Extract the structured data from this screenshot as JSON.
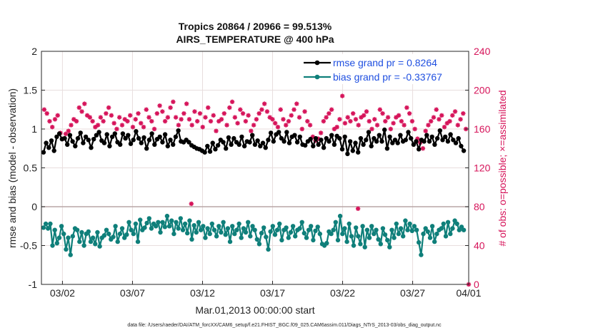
{
  "chart_data": {
    "type": "line",
    "title": "Tropics 20864 / 20966 = 99.513%",
    "subtitle": "AIRS_TEMPERATURE @ 400 hPa",
    "xlabel": "Mar.01,2013 00:00:00 start",
    "ylabel": "rmse and bias (model - observation)",
    "ylabel_right": "# of obs: o=possible; ×=assimilated",
    "footer": "data file: /Users/raeder/DAI/ATM_forcXX/CAM6_setup/f.e21.FHIST_BGC.f09_025.CAM6assim.011/Diags_NTrS_2013-03/obs_diag_output.nc",
    "ylim": [
      -1,
      2
    ],
    "ylim_right": [
      0,
      240
    ],
    "xlim_days": [
      -0.5,
      30
    ],
    "yticks": [
      "2",
      "1.5",
      "1",
      "0.5",
      "0",
      "-0.5",
      "-1"
    ],
    "yticks_right": [
      "240",
      "200",
      "160",
      "120",
      "80",
      "40",
      "0"
    ],
    "xticks": [
      "03/02",
      "03/07",
      "03/12",
      "03/17",
      "03/22",
      "03/27",
      "04/01"
    ],
    "legend": {
      "position": "top-right"
    },
    "colors": {
      "rmse": "#000000",
      "bias": "#0f7f7a",
      "obs": "#d6145a",
      "zero": "#b8a6a6",
      "grid": "#e8dede"
    },
    "series": [
      {
        "name": "rmse grand pr = 0.8264",
        "values": [
          0.7,
          0.82,
          0.76,
          0.85,
          0.72,
          0.9,
          0.94,
          0.87,
          0.88,
          0.8,
          0.92,
          0.84,
          0.78,
          0.88,
          0.95,
          0.82,
          0.9,
          0.86,
          0.76,
          0.87,
          0.92,
          0.96,
          0.85,
          0.82,
          0.93,
          0.78,
          0.9,
          0.94,
          0.83,
          0.8,
          0.94,
          0.88,
          0.92,
          0.81,
          0.86,
          0.97,
          0.88,
          0.82,
          0.89,
          0.75,
          0.86,
          0.94,
          0.8,
          0.87,
          0.9,
          0.83,
          0.93,
          0.78,
          0.86,
          0.8,
          0.9,
          0.98,
          0.84,
          0.83,
          0.86,
          0.83,
          0.79,
          0.77,
          0.75,
          0.74,
          0.72,
          0.7,
          0.78,
          0.71,
          0.82,
          0.74,
          0.79,
          0.86,
          0.83,
          0.75,
          0.89,
          0.8,
          0.88,
          0.83,
          0.8,
          0.9,
          0.78,
          0.84,
          0.83,
          0.92,
          0.8,
          0.85,
          0.78,
          0.82,
          0.76,
          0.86,
          0.95,
          0.84,
          0.93,
          0.96,
          0.88,
          0.84,
          0.96,
          0.82,
          0.9,
          0.92,
          0.83,
          0.9,
          0.8,
          0.79,
          0.84,
          0.87,
          0.78,
          0.88,
          0.8,
          0.86,
          0.76,
          0.88,
          0.84,
          0.92,
          0.8,
          0.91,
          0.88,
          0.74,
          0.9,
          0.68,
          0.84,
          0.72,
          0.82,
          0.7,
          0.88,
          0.8,
          0.86,
          0.96,
          0.78,
          0.88,
          0.84,
          0.92,
          0.84,
          0.99,
          0.75,
          0.9,
          0.82,
          0.86,
          0.82,
          0.92,
          0.84,
          0.86,
          0.96,
          0.88,
          0.8,
          0.84,
          0.74,
          0.86,
          0.84,
          0.92,
          0.84,
          0.9,
          0.8,
          0.88,
          0.98,
          0.86,
          0.9,
          0.84,
          0.93,
          0.86,
          0.82,
          0.88,
          0.78,
          0.72
        ]
      },
      {
        "name": "bias grand pr = -0.33767",
        "values": [
          -0.27,
          -0.22,
          -0.28,
          -0.22,
          -0.5,
          -0.3,
          -0.47,
          -0.4,
          -0.25,
          -0.35,
          -0.55,
          -0.4,
          -0.62,
          -0.38,
          -0.28,
          -0.3,
          -0.45,
          -0.33,
          -0.5,
          -0.35,
          -0.32,
          -0.45,
          -0.4,
          -0.48,
          -0.33,
          -0.51,
          -0.4,
          -0.37,
          -0.3,
          -0.35,
          -0.42,
          -0.39,
          -0.25,
          -0.45,
          -0.35,
          -0.28,
          -0.4,
          -0.36,
          -0.2,
          -0.3,
          -0.35,
          -0.22,
          -0.45,
          -0.17,
          -0.3,
          -0.27,
          -0.21,
          -0.15,
          -0.28,
          -0.22,
          -0.25,
          -0.2,
          -0.33,
          -0.2,
          -0.26,
          -0.12,
          -0.25,
          -0.18,
          -0.35,
          -0.2,
          -0.28,
          -0.15,
          -0.3,
          -0.22,
          -0.34,
          -0.18,
          -0.42,
          -0.24,
          -0.33,
          -0.2,
          -0.3,
          -0.25,
          -0.4,
          -0.28,
          -0.35,
          -0.22,
          -0.3,
          -0.38,
          -0.25,
          -0.33,
          -0.2,
          -0.36,
          -0.28,
          -0.45,
          -0.25,
          -0.35,
          -0.3,
          -0.22,
          -0.4,
          -0.28,
          -0.33,
          -0.2,
          -0.38,
          -0.25,
          -0.3,
          -0.42,
          -0.48,
          -0.34,
          -0.27,
          -0.39,
          -0.55,
          -0.32,
          -0.25,
          -0.36,
          -0.3,
          -0.22,
          -0.43,
          -0.3,
          -0.27,
          -0.4,
          -0.33,
          -0.25,
          -0.38,
          -0.3,
          -0.28,
          -0.2,
          -0.34,
          -0.4,
          -0.3,
          -0.25,
          -0.43,
          -0.31,
          -0.26,
          -0.35,
          -0.48,
          -0.5,
          -0.47,
          -0.32,
          -0.35,
          -0.3,
          -0.2,
          -0.43,
          -0.12,
          -0.35,
          -0.28,
          -0.45,
          -0.22,
          -0.38,
          -0.5,
          -0.27,
          -0.38,
          -0.48,
          -0.25,
          -0.52,
          -0.3,
          -0.4,
          -0.25,
          -0.35,
          -0.3,
          -0.42,
          -0.48,
          -0.28,
          -0.36,
          -0.43,
          -0.52,
          -0.3,
          -0.4,
          -0.22,
          -0.35,
          -0.28,
          -0.38,
          -0.18,
          -0.3,
          -0.22,
          -0.31,
          -0.25,
          -0.3,
          -0.46,
          -0.62,
          -0.35,
          -0.28,
          -0.32,
          -0.4,
          -0.25,
          -0.45,
          -0.35,
          -0.3,
          -0.28,
          -0.22,
          -0.38,
          -0.2,
          -0.35,
          -0.28,
          -0.18,
          -0.22,
          -0.3,
          -0.26,
          -0.3
        ]
      }
    ],
    "obs_counts": [
      180,
      176,
      168,
      162,
      170,
      174,
      156,
      150,
      155,
      158,
      164,
      170,
      168,
      182,
      178,
      186,
      174,
      172,
      168,
      162,
      164,
      172,
      168,
      176,
      182,
      174,
      166,
      160,
      172,
      164,
      170,
      168,
      174,
      162,
      170,
      176,
      166,
      162,
      180,
      172,
      168,
      160,
      176,
      184,
      178,
      168,
      172,
      182,
      188,
      172,
      164,
      170,
      176,
      186,
      170,
      164,
      178,
      168,
      176,
      162,
      172,
      182,
      168,
      174,
      158,
      168,
      170,
      176,
      164,
      182,
      188,
      172,
      166,
      180,
      176,
      168,
      174,
      158,
      164,
      170,
      176,
      180,
      186,
      178,
      172,
      170,
      166,
      162,
      180,
      170,
      164,
      168,
      174,
      180,
      186,
      172,
      160,
      178,
      168,
      164,
      152,
      148,
      150,
      156,
      168,
      172,
      176,
      180,
      160,
      162,
      170,
      194,
      166,
      172,
      168,
      176,
      170,
      164,
      172,
      174,
      178,
      168,
      160,
      170,
      164,
      180,
      176,
      168,
      172,
      160,
      166,
      172,
      174,
      168,
      164,
      182,
      176,
      168,
      160,
      150,
      146,
      140,
      158,
      164,
      168,
      172,
      180,
      170,
      174,
      162,
      166,
      168,
      174,
      178,
      164,
      170,
      176,
      160
    ],
    "obs_outliers": [
      {
        "day": 10.2,
        "count": 83
      },
      {
        "day": 22.1,
        "count": 78
      },
      {
        "day": 30.0,
        "count": 0
      }
    ]
  }
}
